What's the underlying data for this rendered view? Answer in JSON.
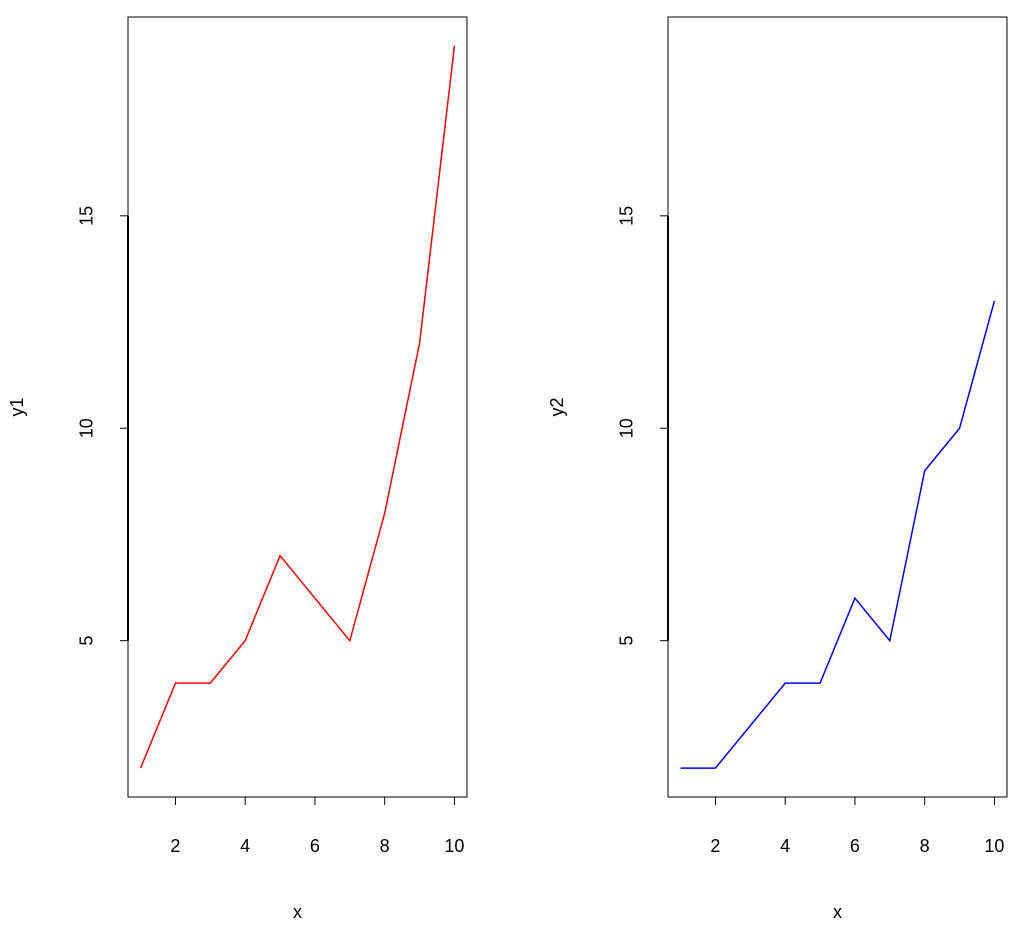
{
  "chart_data": [
    {
      "type": "line",
      "x": [
        1,
        2,
        3,
        4,
        5,
        6,
        7,
        8,
        9,
        10
      ],
      "values": [
        2,
        4,
        4,
        5,
        7,
        6,
        5,
        8,
        12,
        19
      ],
      "color": "#ff0000",
      "xlabel": "x",
      "ylabel": "y1",
      "xlim": [
        0.64,
        10.36
      ],
      "ylim": [
        1.32,
        19.68
      ],
      "xticks": [
        2,
        4,
        6,
        8,
        10
      ],
      "yticks": [
        5,
        10,
        15
      ]
    },
    {
      "type": "line",
      "x": [
        1,
        2,
        3,
        4,
        5,
        6,
        7,
        8,
        9,
        10
      ],
      "values": [
        2,
        2,
        3,
        4,
        4,
        6,
        5,
        9,
        10,
        13
      ],
      "color": "#0000ff",
      "xlabel": "x",
      "ylabel": "y2",
      "xlim": [
        0.64,
        10.36
      ],
      "ylim": [
        1.32,
        19.68
      ],
      "xticks": [
        2,
        4,
        6,
        8,
        10
      ],
      "yticks": [
        5,
        10,
        15
      ]
    }
  ]
}
